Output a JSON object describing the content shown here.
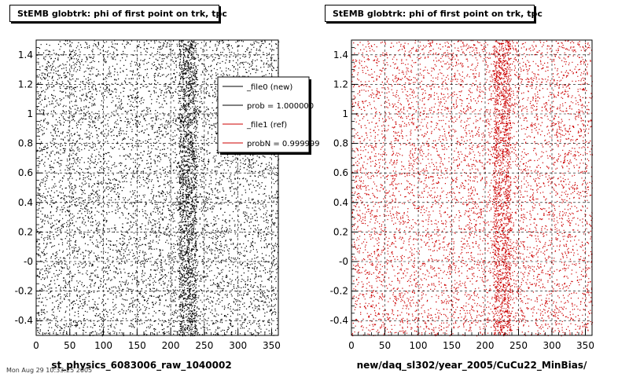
{
  "chart_data": [
    {
      "type": "scatter",
      "title": "StEMB globtrk: phi of first point on trk, tpc",
      "xlabel": "st_physics_6083006_raw_1040002",
      "ylabel": "",
      "xlim": [
        0,
        360
      ],
      "ylim": [
        -0.5,
        1.5
      ],
      "x_ticks": [
        0,
        50,
        100,
        150,
        200,
        250,
        300,
        350
      ],
      "y_ticks": [
        -0.4,
        -0.2,
        0,
        0.2,
        0.4,
        0.6,
        0.8,
        1,
        1.2,
        1.4
      ],
      "y_tick_labels": [
        "-0.4",
        "-0.2",
        "-0",
        "0.2",
        "0.4",
        "0.6",
        "0.8",
        "1",
        "1.2",
        "1.4"
      ],
      "grid": true,
      "marker_color": "#000000",
      "distribution": "dense uniform scatter over full range, denser vertical bands near x ~ 215-235",
      "legend": {
        "placement": "top-right",
        "entries": [
          {
            "label": "_file0 (new)",
            "color": "#000000"
          },
          {
            "label": "prob = 1.000000",
            "color": "#000000"
          },
          {
            "label": "_file1 (ref)",
            "color": "#cc0000"
          },
          {
            "label": "probN = 0.999999",
            "color": "#cc0000"
          }
        ]
      }
    },
    {
      "type": "scatter",
      "title": "StEMB globtrk: phi of first point on trk, tpc",
      "xlabel": "new/daq_sl302/year_2005/CuCu22_MinBias/",
      "ylabel": "",
      "xlim": [
        0,
        360
      ],
      "ylim": [
        -0.5,
        1.5
      ],
      "x_ticks": [
        0,
        50,
        100,
        150,
        200,
        250,
        300,
        350
      ],
      "y_ticks": [
        -0.4,
        -0.2,
        0,
        0.2,
        0.4,
        0.6,
        0.8,
        1,
        1.2,
        1.4
      ],
      "y_tick_labels": [
        "-0.4",
        "-0.2",
        "-0",
        "0.2",
        "0.4",
        "0.6",
        "0.8",
        "1",
        "1.2",
        "1.4"
      ],
      "grid": true,
      "marker_color": "#cc0000",
      "distribution": "dense uniform scatter over full range, denser vertical bands near x ~ 215-235"
    }
  ],
  "footer_text": "Mon Aug 29 10:33:25 2005"
}
